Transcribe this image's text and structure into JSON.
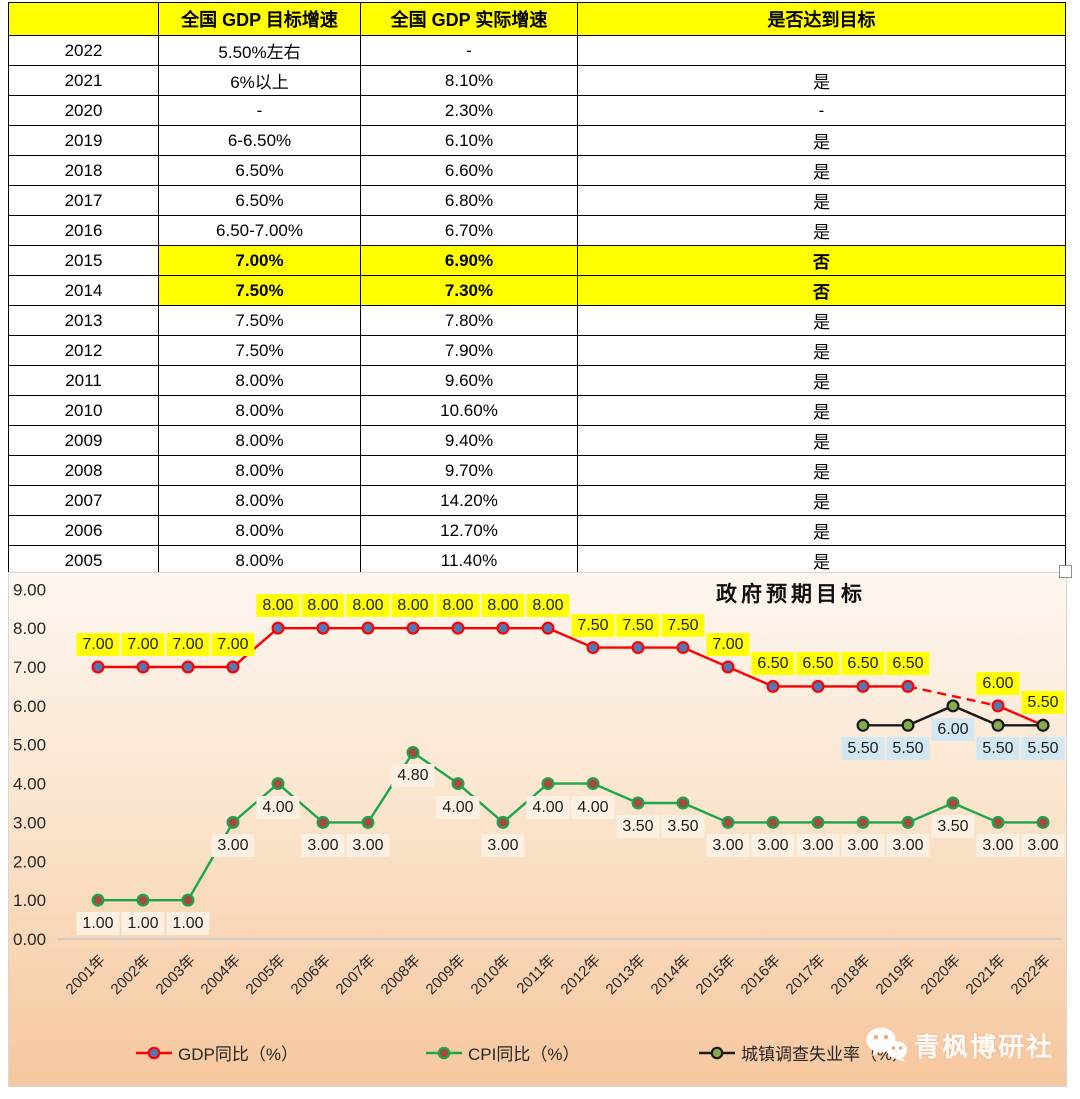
{
  "table": {
    "headers": [
      "",
      "全国 GDP 目标增速",
      "全国 GDP 实际增速",
      "是否达到目标"
    ],
    "rows": [
      {
        "year": "2022",
        "target": "5.50%左右",
        "actual": "-",
        "met": "",
        "highlight": false
      },
      {
        "year": "2021",
        "target": "6%以上",
        "actual": "8.10%",
        "met": "是",
        "highlight": false
      },
      {
        "year": "2020",
        "target": "-",
        "actual": "2.30%",
        "met": "-",
        "highlight": false
      },
      {
        "year": "2019",
        "target": "6-6.50%",
        "actual": "6.10%",
        "met": "是",
        "highlight": false
      },
      {
        "year": "2018",
        "target": "6.50%",
        "actual": "6.60%",
        "met": "是",
        "highlight": false
      },
      {
        "year": "2017",
        "target": "6.50%",
        "actual": "6.80%",
        "met": "是",
        "highlight": false
      },
      {
        "year": "2016",
        "target": "6.50-7.00%",
        "actual": "6.70%",
        "met": "是",
        "highlight": false
      },
      {
        "year": "2015",
        "target": "7.00%",
        "actual": "6.90%",
        "met": "否",
        "highlight": true
      },
      {
        "year": "2014",
        "target": "7.50%",
        "actual": "7.30%",
        "met": "否",
        "highlight": true
      },
      {
        "year": "2013",
        "target": "7.50%",
        "actual": "7.80%",
        "met": "是",
        "highlight": false
      },
      {
        "year": "2012",
        "target": "7.50%",
        "actual": "7.90%",
        "met": "是",
        "highlight": false
      },
      {
        "year": "2011",
        "target": "8.00%",
        "actual": "9.60%",
        "met": "是",
        "highlight": false
      },
      {
        "year": "2010",
        "target": "8.00%",
        "actual": "10.60%",
        "met": "是",
        "highlight": false
      },
      {
        "year": "2009",
        "target": "8.00%",
        "actual": "9.40%",
        "met": "是",
        "highlight": false
      },
      {
        "year": "2008",
        "target": "8.00%",
        "actual": "9.70%",
        "met": "是",
        "highlight": false
      },
      {
        "year": "2007",
        "target": "8.00%",
        "actual": "14.20%",
        "met": "是",
        "highlight": false
      },
      {
        "year": "2006",
        "target": "8.00%",
        "actual": "12.70%",
        "met": "是",
        "highlight": false
      },
      {
        "year": "2005",
        "target": "8.00%",
        "actual": "11.40%",
        "met": "是",
        "highlight": false
      }
    ]
  },
  "chart_data": {
    "type": "line",
    "title": "政府预期目标",
    "x": [
      "2001年",
      "2002年",
      "2003年",
      "2004年",
      "2005年",
      "2006年",
      "2007年",
      "2008年",
      "2009年",
      "2010年",
      "2011年",
      "2012年",
      "2013年",
      "2014年",
      "2015年",
      "2016年",
      "2017年",
      "2018年",
      "2019年",
      "2020年",
      "2021年",
      "2022年"
    ],
    "ylim": [
      0,
      9
    ],
    "yticks": [
      9,
      8,
      7,
      6,
      5,
      4,
      3,
      2,
      1,
      0
    ],
    "ytick_labels": [
      "9.00",
      "8.00",
      "7.00",
      "6.00",
      "5.00",
      "4.00",
      "3.00",
      "2.00",
      "1.00",
      "0.00"
    ],
    "grid": "zero-baseline-only",
    "legend_position": "bottom",
    "background_gradient": [
      "#FDF6F0",
      "#FBE7D2",
      "#F6C79E"
    ],
    "series": [
      {
        "name": "GDP同比（%）",
        "line_color": "#FF0000",
        "marker_fill": "#4E79B8",
        "marker_edge": "#FF0000",
        "label_bg": "#FFFF00",
        "label_side": "above",
        "values": [
          7,
          7,
          7,
          7,
          8,
          8,
          8,
          8,
          8,
          8,
          8,
          7.5,
          7.5,
          7.5,
          7,
          6.5,
          6.5,
          6.5,
          6.5,
          null,
          6,
          5.5
        ],
        "segments": [
          {
            "from": 0,
            "to": 18,
            "dash": false
          },
          {
            "from": 18,
            "to": 20,
            "dash": true
          },
          {
            "from": 20,
            "to": 21,
            "dash": false
          }
        ]
      },
      {
        "name": "CPI同比（%）",
        "line_color": "#1CA64C",
        "marker_fill": "#A8493E",
        "marker_edge": "#1CA64C",
        "label_bg": "#FCF0E3",
        "label_side": "below",
        "values": [
          1,
          1,
          1,
          3,
          4,
          3,
          3,
          4.8,
          4,
          3,
          4,
          4,
          3.5,
          3.5,
          3,
          3,
          3,
          3,
          3,
          3.5,
          3,
          3
        ]
      },
      {
        "name": "城镇调查失业率（%）",
        "line_color": "#1A1A1A",
        "marker_fill": "#84AC4D",
        "marker_edge": "#1A1A1A",
        "label_bg": "#D3E7F2",
        "label_side": "below",
        "values": [
          null,
          null,
          null,
          null,
          null,
          null,
          null,
          null,
          null,
          null,
          null,
          null,
          null,
          null,
          null,
          null,
          null,
          5.5,
          5.5,
          6,
          5.5,
          5.5
        ]
      }
    ]
  },
  "watermark": {
    "text": "青枫博研社",
    "icon": "wechat-icon"
  }
}
